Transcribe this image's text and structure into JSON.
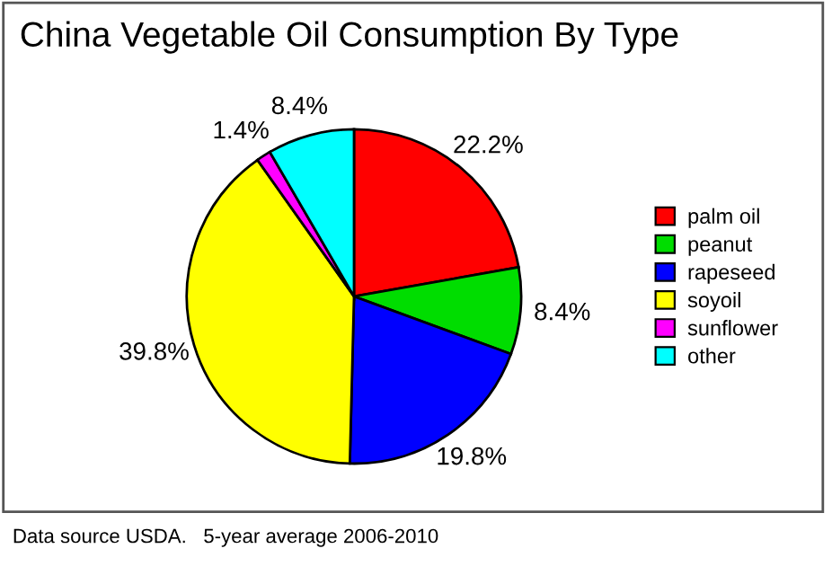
{
  "chart_data": {
    "type": "pie",
    "title": "China Vegetable Oil Consumption By Type",
    "categories": [
      "palm oil",
      "peanut",
      "rapeseed",
      "soyoil",
      "sunflower",
      "other"
    ],
    "values": [
      22.2,
      8.4,
      19.8,
      39.8,
      1.4,
      8.4
    ],
    "colors": [
      "#ff0000",
      "#00dd00",
      "#0000ff",
      "#ffff00",
      "#ff00ff",
      "#00ffff"
    ],
    "value_labels": [
      "22.2%",
      "8.4%",
      "19.8%",
      "39.8%",
      "1.4%",
      "8.4%"
    ],
    "legend": "right",
    "annotations": [
      "Data source USDA.   5-year average 2006-2010"
    ]
  }
}
